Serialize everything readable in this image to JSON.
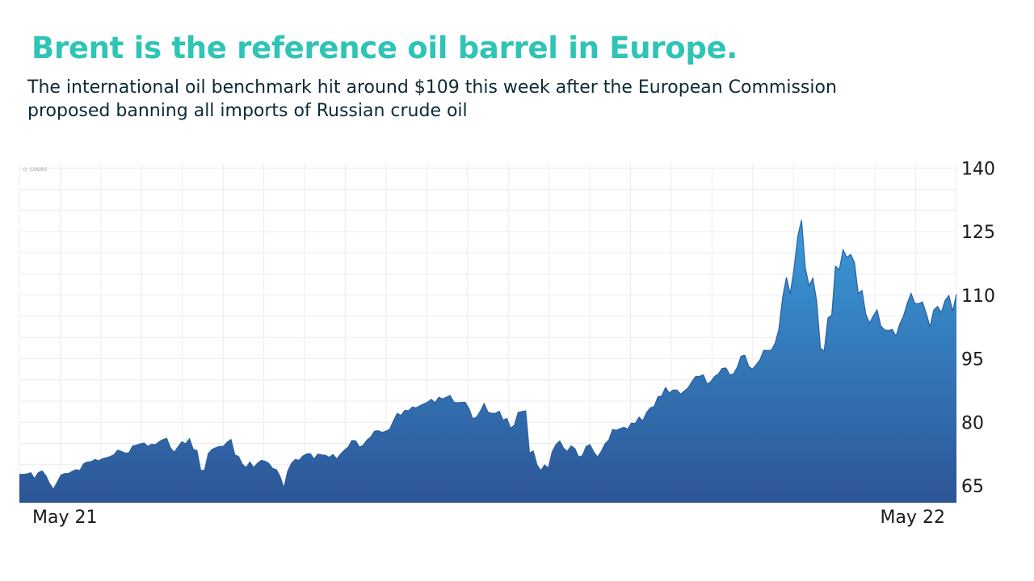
{
  "title": "Brent is the reference oil barrel in Europe.",
  "subtitle": "The international oil benchmark hit around $109 this week after the European Commission proposed banning all imports of Russian crude oil",
  "colors": {
    "title": "#2ec4b6",
    "area_top": "#3a9ad9",
    "area_bottom": "#2d5596",
    "line": "#2a5fa0"
  },
  "chart_data": {
    "type": "area",
    "legend": "COURS",
    "x_start_label": "May 21",
    "x_end_label": "May 22",
    "ylim": [
      61,
      141
    ],
    "yticks": [
      65,
      80,
      95,
      110,
      125,
      140
    ],
    "grid": true,
    "series": [
      {
        "name": "",
        "values": [
          67.7,
          67.7,
          67.8,
          68.1,
          66.7,
          68.1,
          68.5,
          67.4,
          65.5,
          64.2,
          65.8,
          67.5,
          67.9,
          67.9,
          68.4,
          68.8,
          68.6,
          70.2,
          70.6,
          70.7,
          71.2,
          70.9,
          71.4,
          71.6,
          71.9,
          72.3,
          73.4,
          73.1,
          72.7,
          72.8,
          74.4,
          74.6,
          74.9,
          75.1,
          74.3,
          74.8,
          74.7,
          75.4,
          75.9,
          76.2,
          73.9,
          72.9,
          74.2,
          75.4,
          74.9,
          76.1,
          73.6,
          73.3,
          68.6,
          68.7,
          72.6,
          73.6,
          74.0,
          74.3,
          74.3,
          75.3,
          75.9,
          72.3,
          71.9,
          70.1,
          69.3,
          70.6,
          69.3,
          70.3,
          71.0,
          70.8,
          70.3,
          69.1,
          68.8,
          67.2,
          64.5,
          68.4,
          70.3,
          71.2,
          71.0,
          72.0,
          72.5,
          72.6,
          71.3,
          72.5,
          72.3,
          72.2,
          71.7,
          72.4,
          71.3,
          72.5,
          73.4,
          74.1,
          75.7,
          75.6,
          74.1,
          74.6,
          75.8,
          76.5,
          77.9,
          78.0,
          77.6,
          77.9,
          78.3,
          80.3,
          82.1,
          81.6,
          82.8,
          82.7,
          83.6,
          83.4,
          83.9,
          84.3,
          84.7,
          85.4,
          84.6,
          85.9,
          85.5,
          85.9,
          86.3,
          84.7,
          84.6,
          84.7,
          84.7,
          83.2,
          80.8,
          81.2,
          82.6,
          84.4,
          82.4,
          82.1,
          82.1,
          82.6,
          80.5,
          80.9,
          78.6,
          79.3,
          82.3,
          82.5,
          82.7,
          72.7,
          73.2,
          69.9,
          68.6,
          69.9,
          69.2,
          73.0,
          74.7,
          75.6,
          73.9,
          73.1,
          74.4,
          73.8,
          71.8,
          72.1,
          74.3,
          74.7,
          73.0,
          71.8,
          73.1,
          74.9,
          75.8,
          78.3,
          78.1,
          78.5,
          78.8,
          78.4,
          79.8,
          79.7,
          81.2,
          80.3,
          82.3,
          83.4,
          83.7,
          86.0,
          86.2,
          88.2,
          86.9,
          87.6,
          87.6,
          86.6,
          87.4,
          88.1,
          89.6,
          90.8,
          90.8,
          91.2,
          89.0,
          89.6,
          90.8,
          91.4,
          92.7,
          92.8,
          91.2,
          91.4,
          93.0,
          95.6,
          95.8,
          93.2,
          92.5,
          93.6,
          94.7,
          97.0,
          96.9,
          97.0,
          98.6,
          101.9,
          109.4,
          114.2,
          110.3,
          116.1,
          123.8,
          127.7,
          116.4,
          112.2,
          114.0,
          108.6,
          97.5,
          96.8,
          104.6,
          105.3,
          116.8,
          116.0,
          120.7,
          118.9,
          119.6,
          117.7,
          110.4,
          111.1,
          105.5,
          103.4,
          105.1,
          106.5,
          102.7,
          101.8,
          101.6,
          101.9,
          100.3,
          103.2,
          105.1,
          108.1,
          110.4,
          108.0,
          108.0,
          108.4,
          105.7,
          102.5,
          106.5,
          107.3,
          105.9,
          108.7,
          109.9,
          106.2,
          110.2
        ]
      }
    ]
  }
}
